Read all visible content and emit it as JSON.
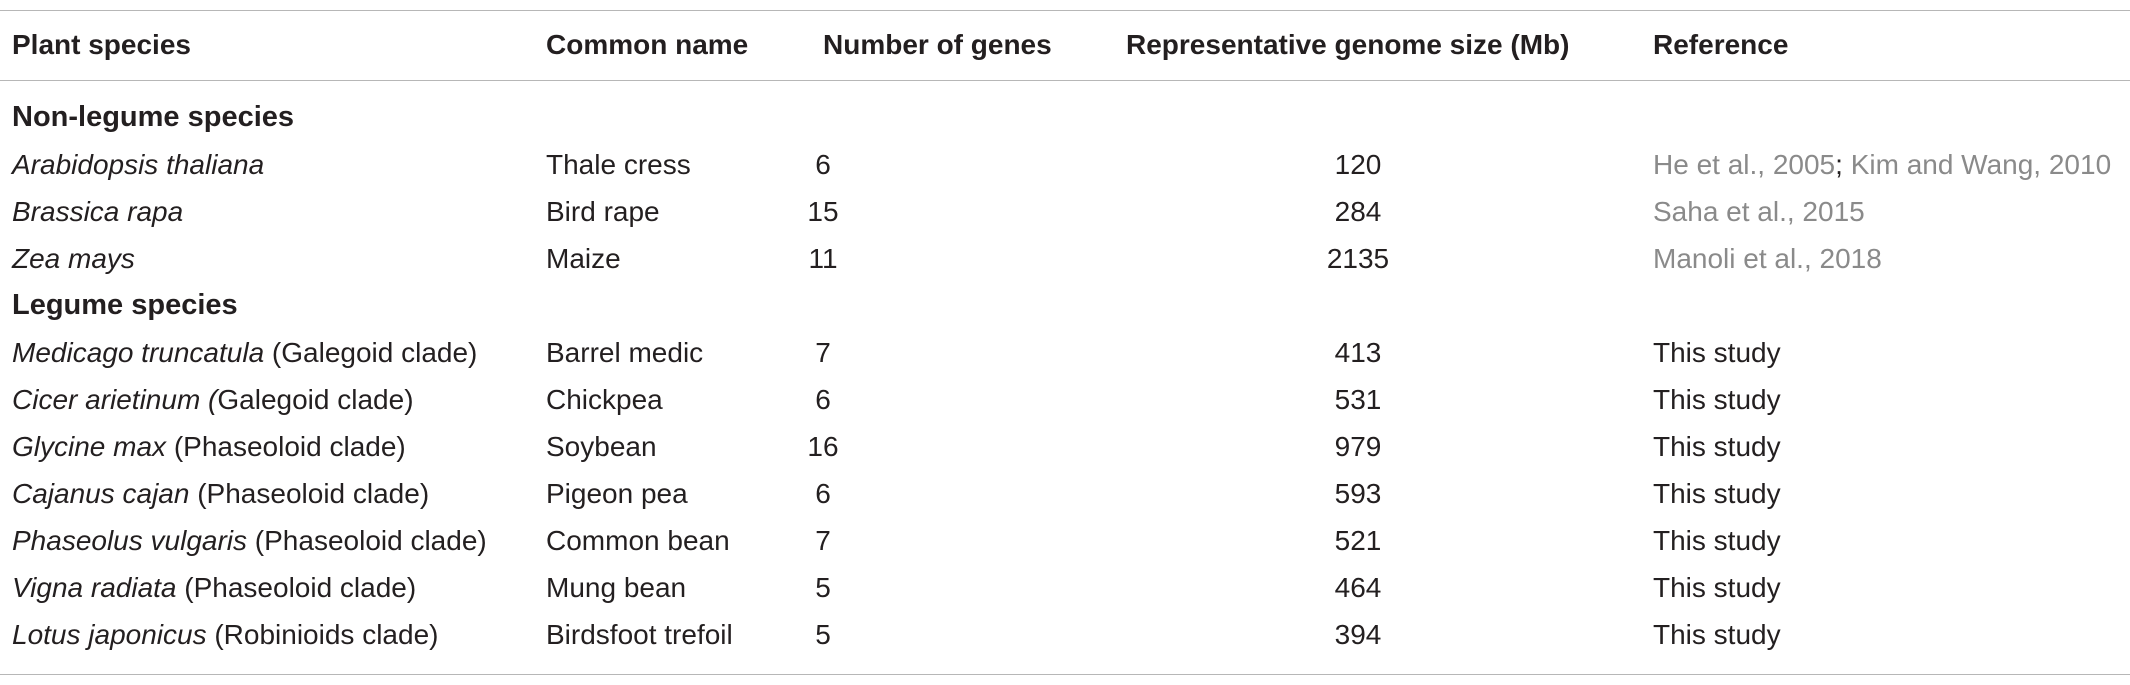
{
  "headers": {
    "species": "Plant species",
    "common": "Common name",
    "genes": "Number of genes",
    "genome": "Representative genome size (Mb)",
    "reference": "Reference"
  },
  "sections": {
    "non_legume": "Non-legume species",
    "legume": "Legume species"
  },
  "non_legume_rows": [
    {
      "species_italic": "Arabidopsis thaliana",
      "species_rest": "",
      "common": "Thale cress",
      "genes": "6",
      "genome": "120",
      "ref_parts": [
        "He et al., 2005",
        "; ",
        "Kim and Wang, 2010"
      ]
    },
    {
      "species_italic": "Brassica rapa",
      "species_rest": "",
      "common": "Bird rape",
      "genes": "15",
      "genome": "284",
      "ref_parts": [
        "Saha et al., 2015",
        "",
        ""
      ]
    },
    {
      "species_italic": "Zea mays",
      "species_rest": "",
      "common": "Maize",
      "genes": "11",
      "genome": "2135",
      "ref_parts": [
        "Manoli et al., 2018",
        "",
        ""
      ]
    }
  ],
  "legume_rows": [
    {
      "species_italic": "Medicago truncatula",
      "species_rest": " (Galegoid clade)",
      "common": "Barrel medic",
      "genes": "7",
      "genome": "413",
      "reference": "This study"
    },
    {
      "species_italic": "Cicer arietinum (",
      "species_rest": "Galegoid clade)",
      "common": "Chickpea",
      "genes": "6",
      "genome": "531",
      "reference": "This study"
    },
    {
      "species_italic": "Glycine max",
      "species_rest": " (Phaseoloid clade)",
      "common": "Soybean",
      "genes": "16",
      "genome": "979",
      "reference": "This study"
    },
    {
      "species_italic": "Cajanus cajan",
      "species_rest": " (Phaseoloid clade)",
      "common": "Pigeon pea",
      "genes": "6",
      "genome": "593",
      "reference": "This study"
    },
    {
      "species_italic": "Phaseolus vulgaris",
      "species_rest": " (Phaseoloid clade)",
      "common": "Common bean",
      "genes": "7",
      "genome": "521",
      "reference": "This study"
    },
    {
      "species_italic": "Vigna radiata",
      "species_rest": " (Phaseoloid clade)",
      "common": "Mung bean",
      "genes": "5",
      "genome": "464",
      "reference": "This study"
    },
    {
      "species_italic": "Lotus japonicus",
      "species_rest": " (Robinioids clade)",
      "common": "Birdsfoot trefoil",
      "genes": "5",
      "genome": "394",
      "reference": "This study"
    }
  ],
  "colors": {
    "text": "#231f20",
    "reference_link": "#8a8a8a",
    "rule": "#b7b7b7"
  }
}
